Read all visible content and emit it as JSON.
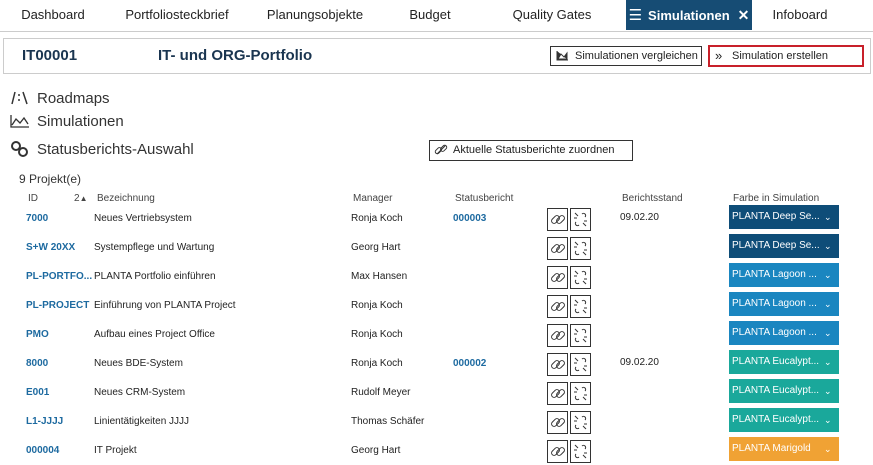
{
  "tabs": [
    "Dashboard",
    "Portfoliosteckbrief",
    "Planungsobjekte",
    "Budget",
    "Quality Gates",
    "Simulationen",
    "Infoboard"
  ],
  "header": {
    "id": "IT00001",
    "title": "IT- und ORG-Portfolio",
    "buttons": [
      "Simulationen vergleichen",
      "Simulation erstellen"
    ]
  },
  "nav": [
    "Roadmaps",
    "Simulationen",
    "Statusberichts-Auswahl"
  ],
  "assign_button": "Aktuelle Statusberichte zuordnen",
  "count": "9 Projekt(e)",
  "table": {
    "columns": [
      "ID",
      "Bezeichnung",
      "Manager",
      "Statusbericht",
      "Berichtsstand",
      "Farbe in Simulation"
    ],
    "sort_label": "2",
    "rows": [
      {
        "id": "7000",
        "name": "Neues Vertriebsystem",
        "manager": "Ronja Koch",
        "report": "000003",
        "date": "09.02.20",
        "color_name": "PLANTA Deep Se...",
        "color": "#0e4d78"
      },
      {
        "id": "S+W 20XX",
        "name": "Systempflege und Wartung",
        "manager": "Georg Hart",
        "color_name": "PLANTA Deep Se...",
        "color": "#0e4d78"
      },
      {
        "id": "PL-PORTFO...",
        "name": "PLANTA Portfolio einführen",
        "manager": "Max Hansen",
        "color_name": "PLANTA Lagoon ...",
        "color": "#1a86c0"
      },
      {
        "id": "PL-PROJECT",
        "name": "Einführung von PLANTA Project",
        "manager": "Ronja Koch",
        "color_name": "PLANTA Lagoon ...",
        "color": "#1a86c0"
      },
      {
        "id": "PMO",
        "name": "Aufbau eines Project Office",
        "manager": "Ronja Koch",
        "color_name": "PLANTA Lagoon ...",
        "color": "#1a86c0"
      },
      {
        "id": "8000",
        "name": "Neues BDE-System",
        "manager": "Ronja Koch",
        "report": "000002",
        "date": "09.02.20",
        "color_name": "PLANTA Eucalypt...",
        "color": "#1aa89b"
      },
      {
        "id": "E001",
        "name": "Neues CRM-System",
        "manager": "Rudolf Meyer",
        "color_name": "PLANTA Eucalypt...",
        "color": "#1aa89b"
      },
      {
        "id": "L1-JJJJ",
        "name": "Linientätigkeiten JJJJ",
        "manager": "Thomas Schäfer",
        "color_name": "PLANTA Eucalypt...",
        "color": "#1aa89b"
      },
      {
        "id": "000004",
        "name": "IT Projekt",
        "manager": "Georg Hart",
        "color_name": "PLANTA Marigold",
        "color": "#f0a234"
      }
    ]
  }
}
